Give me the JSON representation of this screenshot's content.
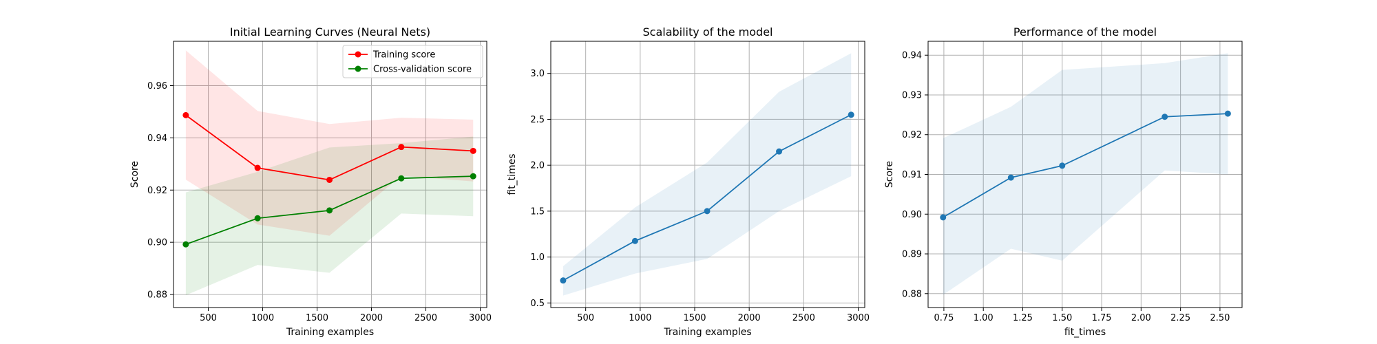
{
  "chart_data": [
    {
      "type": "line",
      "title": "Initial Learning Curves (Neural Nets)",
      "xlabel": "Training examples",
      "ylabel": "Score",
      "xlim": [
        180,
        3060
      ],
      "ylim": [
        0.875,
        0.977
      ],
      "xticks": [
        500,
        1000,
        1500,
        2000,
        2500,
        3000
      ],
      "yticks": [
        0.88,
        0.9,
        0.92,
        0.94,
        0.96
      ],
      "ytick_decimals": 2,
      "grid": true,
      "legend": "top-right",
      "x": [
        293,
        953,
        1614,
        2274,
        2935
      ],
      "series": [
        {
          "name": "Training score",
          "color": "#ff0000",
          "band_color": "#ff0000",
          "values": [
            0.9487,
            0.9285,
            0.9239,
            0.9365,
            0.935
          ],
          "lower": [
            0.924,
            0.9068,
            0.9025,
            0.9255,
            0.9233
          ],
          "upper": [
            0.9735,
            0.9503,
            0.9453,
            0.9477,
            0.947
          ]
        },
        {
          "name": "Cross-validation score",
          "color": "#008000",
          "band_color": "#008000",
          "values": [
            0.8992,
            0.9092,
            0.9122,
            0.9245,
            0.9253
          ],
          "lower": [
            0.8797,
            0.8913,
            0.8883,
            0.911,
            0.91
          ],
          "upper": [
            0.9191,
            0.927,
            0.9363,
            0.938,
            0.9405
          ]
        }
      ]
    },
    {
      "type": "line",
      "title": "Scalability of the model",
      "xlabel": "Training examples",
      "ylabel": "fit_times",
      "xlim": [
        180,
        3060
      ],
      "ylim": [
        0.45,
        3.35
      ],
      "xticks": [
        500,
        1000,
        1500,
        2000,
        2500,
        3000
      ],
      "yticks": [
        0.5,
        1.0,
        1.5,
        2.0,
        2.5,
        3.0
      ],
      "ytick_decimals": 1,
      "grid": true,
      "x": [
        293,
        953,
        1614,
        2274,
        2935
      ],
      "series": [
        {
          "color": "#1f77b4",
          "band_color": "#1f77b4",
          "values": [
            0.745,
            1.175,
            1.5,
            2.15,
            2.55
          ],
          "lower": [
            0.58,
            0.82,
            0.98,
            1.5,
            1.88
          ],
          "upper": [
            0.9,
            1.54,
            2.03,
            2.8,
            3.22
          ]
        }
      ]
    },
    {
      "type": "line",
      "title": "Performance of the model",
      "xlabel": "fit_times",
      "ylabel": "Score",
      "xlim": [
        0.65,
        2.64
      ],
      "ylim": [
        0.8765,
        0.9435
      ],
      "xticks": [
        0.75,
        1.0,
        1.25,
        1.5,
        1.75,
        2.0,
        2.25,
        2.5
      ],
      "xtick_decimals": 2,
      "yticks": [
        0.88,
        0.89,
        0.9,
        0.91,
        0.92,
        0.93,
        0.94
      ],
      "ytick_decimals": 2,
      "grid": true,
      "x": [
        0.745,
        1.175,
        1.5,
        2.15,
        2.55
      ],
      "series": [
        {
          "color": "#1f77b4",
          "band_color": "#1f77b4",
          "values": [
            0.8992,
            0.9092,
            0.9122,
            0.9245,
            0.9253
          ],
          "lower": [
            0.8797,
            0.8913,
            0.8883,
            0.911,
            0.91
          ],
          "upper": [
            0.9191,
            0.927,
            0.9363,
            0.938,
            0.9405
          ]
        }
      ]
    }
  ]
}
